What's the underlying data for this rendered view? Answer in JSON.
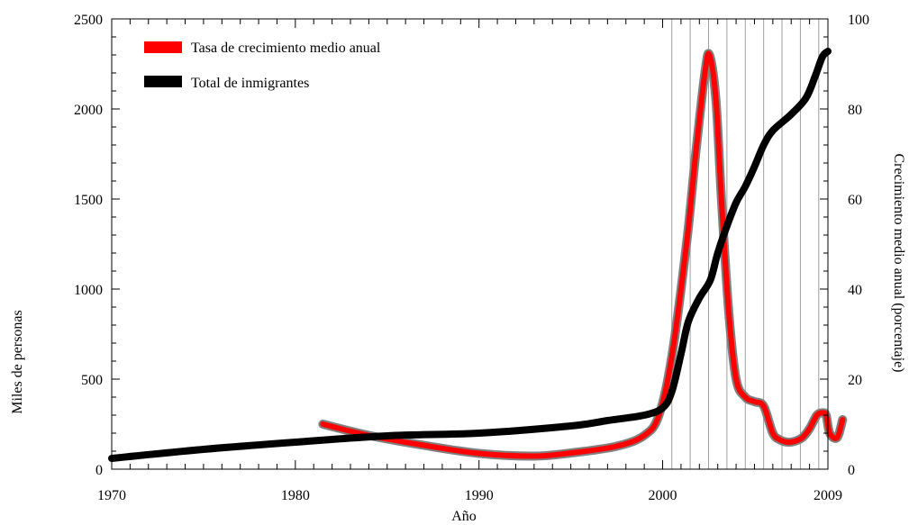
{
  "chart_data": {
    "type": "line",
    "xlabel": "Año",
    "ylabel_left": "Miles de personas",
    "ylabel_right": "Crecimiento medio anual (porcentaje)",
    "xlim": [
      1970,
      2009
    ],
    "ylim_left": [
      0,
      2500
    ],
    "ylim_right": [
      0,
      100
    ],
    "x_ticks": [
      1970,
      1980,
      1990,
      2000,
      2009
    ],
    "y_ticks_left": [
      0,
      500,
      1000,
      1500,
      2000,
      2500
    ],
    "y_ticks_right": [
      0,
      20,
      40,
      60,
      80,
      100
    ],
    "vertical_gridlines_x": [
      2000.5,
      2001.5,
      2002.5,
      2003.5,
      2004.5,
      2005.5,
      2006.5,
      2007.5,
      2008.5
    ],
    "legend_position": "top-left",
    "series": [
      {
        "name": "Tasa de crecimiento medio anual",
        "axis": "right",
        "color": "#ff0000",
        "edge_color": "#808080",
        "x": [
          1981.5,
          1984,
          1987,
          1990,
          1993,
          1995,
          1997.5,
          1999,
          1999.8,
          2000.5,
          2001.3,
          2001.8,
          2002.3,
          2002.55,
          2002.9,
          2003.2,
          2003.6,
          2004,
          2004.5,
          2005,
          2005.5,
          2006,
          2006.4,
          2006.8,
          2007.2,
          2007.6,
          2008.0,
          2008.4,
          2008.7,
          2008.9,
          2009.1,
          2009.5,
          2009.8
        ],
        "y": [
          10,
          7.5,
          5.3,
          3.5,
          2.9,
          3.6,
          5.1,
          7.5,
          12,
          25,
          50,
          70,
          88,
          92,
          82,
          60,
          35,
          20,
          16,
          15,
          14,
          8,
          6.5,
          6,
          6.2,
          7,
          9,
          12,
          12.5,
          12,
          8,
          7,
          11
        ]
      },
      {
        "name": "Total de inmigrantes",
        "axis": "left",
        "color": "#000000",
        "x": [
          1970,
          1975,
          1980,
          1985,
          1990,
          1995,
          1997,
          1999,
          2000,
          2000.5,
          2001,
          2001.4,
          2002,
          2002.6,
          2003,
          2003.5,
          2004,
          2004.5,
          2005,
          2005.5,
          2006,
          2007,
          2007.8,
          2008.3,
          2008.7,
          2009
        ],
        "y": [
          60,
          110,
          150,
          185,
          200,
          240,
          270,
          300,
          340,
          430,
          640,
          820,
          950,
          1050,
          1200,
          1350,
          1480,
          1570,
          1680,
          1800,
          1880,
          1970,
          2060,
          2180,
          2290,
          2320
        ]
      }
    ]
  }
}
